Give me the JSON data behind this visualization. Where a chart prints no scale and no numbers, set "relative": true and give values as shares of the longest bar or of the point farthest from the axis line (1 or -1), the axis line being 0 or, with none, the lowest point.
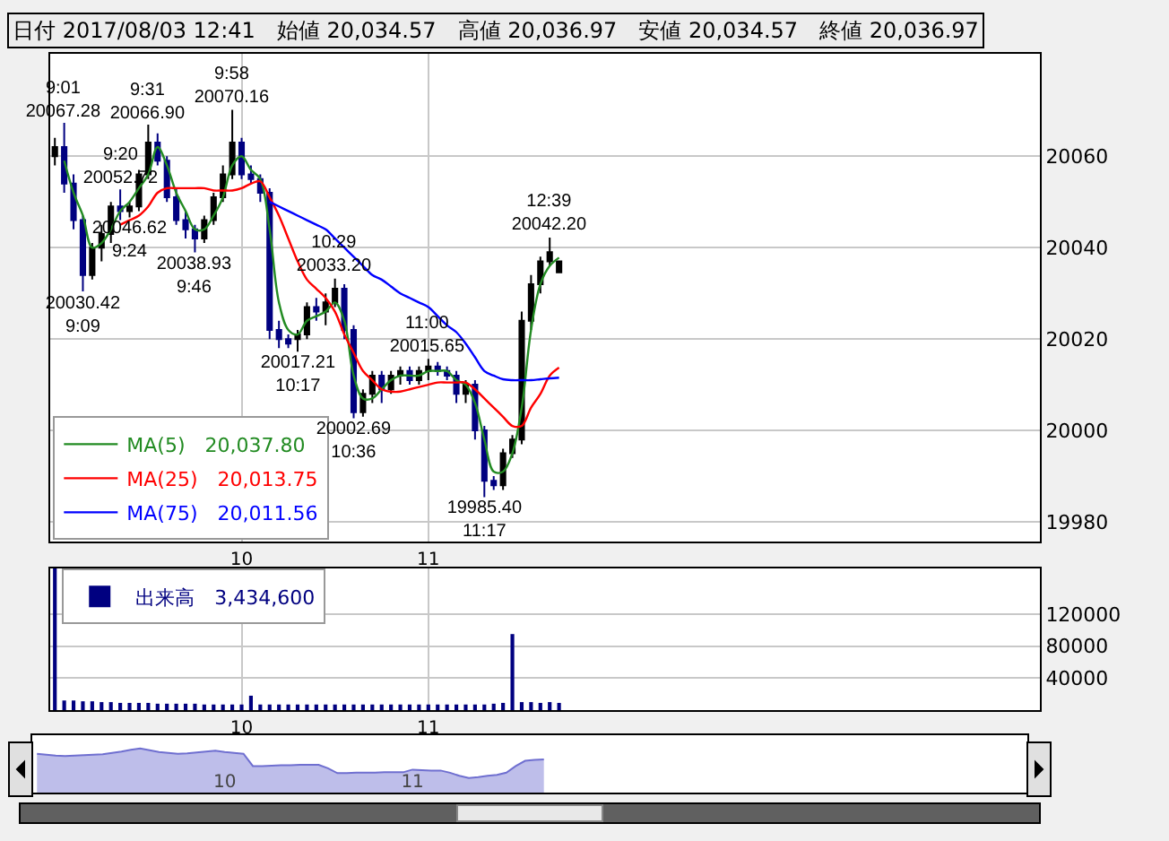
{
  "chart_data": [
    {
      "type": "candlestick",
      "title": "日付 2017/08/03 12:41　始値 20,034.57　高値 20,036.97　安値 20,034.57　終値 20,036.97",
      "categories": [
        null,
        null,
        null,
        null,
        null,
        null,
        null,
        null,
        null,
        null,
        null,
        null,
        null,
        null,
        null,
        null,
        null,
        null,
        null,
        null,
        "10",
        null,
        null,
        null,
        null,
        null,
        null,
        null,
        null,
        null,
        null,
        null,
        null,
        null,
        null,
        null,
        null,
        null,
        null,
        null,
        "11",
        null,
        null,
        null,
        null,
        null,
        null,
        null,
        null,
        null,
        null,
        null,
        null,
        null,
        null,
        null,
        null,
        null,
        null,
        null,
        null,
        null,
        null,
        null,
        null,
        null,
        null,
        null,
        null,
        null,
        null,
        null,
        null,
        null,
        null,
        null,
        null,
        null,
        null,
        null,
        null,
        null,
        null,
        null,
        null,
        null,
        null,
        null,
        null,
        null,
        null,
        null,
        null,
        null,
        null,
        null,
        null,
        null,
        null,
        null,
        null,
        null,
        null,
        null,
        null,
        null
      ],
      "ohlc": [
        [
          20060,
          20064,
          20058,
          20062
        ],
        [
          20062,
          20067.28,
          20052,
          20054
        ],
        [
          20054,
          20056,
          20044,
          20046
        ],
        [
          20046,
          20047,
          20030.42,
          20034
        ],
        [
          20034,
          20041,
          20033,
          20040
        ],
        [
          20040,
          20045,
          20037,
          20043
        ],
        [
          20043,
          20050,
          20041,
          20049
        ],
        [
          20049,
          20052.72,
          20046,
          20048
        ],
        [
          20048,
          20050,
          20046.62,
          20049
        ],
        [
          20049,
          20057,
          20048,
          20056
        ],
        [
          20056,
          20066.9,
          20055,
          20063
        ],
        [
          20063,
          20065,
          20058,
          20059
        ],
        [
          20059,
          20060,
          20050,
          20051
        ],
        [
          20051,
          20053,
          20045,
          20046
        ],
        [
          20046,
          20048,
          20042,
          20044
        ],
        [
          20044,
          20045,
          20038.93,
          20042
        ],
        [
          20042,
          20047,
          20041,
          20046
        ],
        [
          20046,
          20052,
          20045,
          20051
        ],
        [
          20051,
          20058,
          20050,
          20056
        ],
        [
          20056,
          20070.16,
          20055,
          20063
        ],
        [
          20063,
          20064,
          20055,
          20056
        ],
        [
          20056,
          20058,
          20054,
          20055
        ],
        [
          20055,
          20056,
          20050,
          20052
        ],
        [
          20052,
          20053,
          20020,
          20022
        ],
        [
          20022,
          20024,
          20018,
          20020
        ],
        [
          20020,
          20021,
          20018,
          20019
        ],
        [
          20020,
          20022,
          20017.21,
          20021
        ],
        [
          20021,
          20028,
          20020,
          20027
        ],
        [
          20027,
          20029,
          20024,
          20026
        ],
        [
          20026,
          20030,
          20023,
          20028
        ],
        [
          20028,
          20033.2,
          20027,
          20031
        ],
        [
          20031,
          20032,
          20020,
          20022
        ],
        [
          20022,
          20023,
          20002.69,
          20004
        ],
        [
          20004,
          20009,
          20003,
          20008
        ],
        [
          20008,
          20013,
          20006,
          20012
        ],
        [
          20012,
          20013,
          20006,
          20009
        ],
        [
          20009,
          20013,
          20008,
          20012
        ],
        [
          20012,
          20014,
          20010,
          20013
        ],
        [
          20013,
          20014,
          20010,
          20011
        ],
        [
          20011,
          20014,
          20010,
          20013
        ],
        [
          20013,
          20015.65,
          20011,
          20014
        ],
        [
          20014,
          20015,
          20012,
          20013
        ],
        [
          20013,
          20014,
          20011,
          20012
        ],
        [
          20012,
          20013,
          20006,
          20008
        ],
        [
          20008,
          20011,
          20006,
          20010
        ],
        [
          20010,
          20011,
          19998,
          20000
        ],
        [
          20000,
          20001,
          19985.4,
          19989
        ],
        [
          19989,
          19990,
          19987,
          19988
        ],
        [
          19988,
          19996,
          19987,
          19995
        ],
        [
          19995,
          19999,
          19994,
          19998
        ],
        [
          19998,
          20026,
          19997,
          20024
        ],
        [
          20024,
          20034,
          20022,
          20032
        ],
        [
          20032,
          20038,
          20030,
          20037
        ],
        [
          20037,
          20042.2,
          20036,
          20039
        ],
        [
          20034.57,
          20036.97,
          20034.57,
          20036.97
        ],
        null,
        null,
        null,
        null,
        null,
        null,
        null,
        null,
        null,
        null,
        null,
        null,
        null,
        null,
        null,
        null,
        null,
        null,
        null,
        null,
        null,
        null,
        null,
        null,
        null,
        null,
        null,
        null,
        null,
        null,
        null,
        null,
        null,
        null,
        null,
        null,
        null,
        null,
        null,
        null,
        null,
        null,
        null,
        null,
        null,
        null,
        null,
        null,
        null,
        null,
        null
      ],
      "colors": [
        "#000000",
        "#000080",
        "#000080",
        "#000080",
        "#000000",
        "#000000",
        "#000000",
        "#000080",
        "#000000",
        "#000000",
        "#000000",
        "#000080",
        "#000080",
        "#000080",
        "#000080",
        "#000080",
        "#000000",
        "#000000",
        "#000000",
        "#000000",
        "#000080",
        "#000080",
        "#000080",
        "#000080",
        "#000080",
        "#000080",
        "#000000",
        "#000000",
        "#000080",
        "#000000",
        "#000000",
        "#000080",
        "#000080",
        "#000000",
        "#000000",
        "#000080",
        "#000000",
        "#000000",
        "#000080",
        "#000000",
        "#000000",
        "#000080",
        "#000080",
        "#000080",
        "#000000",
        "#000080",
        "#000080",
        "#000080",
        "#000000",
        "#000000",
        "#000000",
        "#000000",
        "#000000",
        "#000000",
        "#000000",
        null,
        null,
        null,
        null,
        null,
        null,
        null,
        null,
        null,
        null,
        null,
        null,
        null,
        null,
        null,
        null,
        null,
        null,
        null,
        null,
        null,
        null,
        null,
        null,
        null,
        null,
        null,
        null,
        null,
        null,
        null,
        null,
        null,
        null,
        null,
        null,
        null,
        null,
        null,
        null,
        null,
        null,
        null,
        null,
        null,
        null,
        null,
        null,
        null,
        null,
        null
      ],
      "series": [
        {
          "type": "line",
          "name": "MA(5)　20,037.80",
          "color": "#228b22",
          "values": [
            null,
            20059,
            20052,
            20047,
            20040,
            20041,
            20044,
            20048,
            20050,
            20053,
            20056,
            20062,
            20058,
            20052,
            20048,
            20044,
            20044,
            20047,
            20051,
            20058,
            20060,
            20057,
            20055,
            20044,
            20028,
            20022,
            20021,
            20024,
            20025,
            20026,
            20028,
            20024,
            20012,
            20007,
            20007,
            20009,
            20011,
            20012,
            20012,
            20012,
            20013,
            20013,
            20013,
            20011,
            20010,
            20006,
            19998,
            19991,
            19991,
            19995,
            20005,
            20022,
            20032,
            20036,
            20037.8,
            null,
            null,
            null,
            null,
            null,
            null,
            null,
            null,
            null,
            null,
            null,
            null,
            null,
            null,
            null,
            null,
            null,
            null,
            null,
            null,
            null,
            null,
            null,
            null,
            null,
            null,
            null,
            null,
            null,
            null,
            null,
            null,
            null,
            null,
            null,
            null,
            null,
            null,
            null,
            null,
            null,
            null,
            null,
            null,
            null,
            null,
            null,
            null,
            null,
            null,
            null
          ]
        },
        {
          "type": "line",
          "name": "MA(25)　20,013.75",
          "color": "#ff0000",
          "values": [
            null,
            null,
            null,
            null,
            null,
            null,
            null,
            20045,
            20046,
            20047,
            20049,
            20052,
            20053,
            20053,
            20053,
            20053,
            20053,
            20052.5,
            20052.5,
            20052.5,
            20053,
            20054,
            20054.5,
            20051,
            20047,
            20042,
            20037,
            20033,
            20031,
            20029,
            20026,
            20021,
            20017,
            20013,
            20011,
            20009,
            20008.5,
            20008.5,
            20009,
            20009.5,
            20010,
            20010.5,
            20010.5,
            20010.5,
            20010.5,
            20009,
            20007,
            20005,
            20003,
            20001,
            20001,
            20005,
            20008,
            20012,
            20013.75,
            null,
            null,
            null,
            null,
            null,
            null,
            null,
            null,
            null,
            null,
            null,
            null,
            null,
            null,
            null,
            null,
            null,
            null,
            null,
            null,
            null,
            null,
            null,
            null,
            null,
            null,
            null,
            null,
            null,
            null,
            null,
            null,
            null,
            null,
            null,
            null,
            null,
            null,
            null,
            null,
            null,
            null,
            null,
            null,
            null,
            null,
            null,
            null,
            null,
            null,
            null
          ]
        },
        {
          "type": "line",
          "name": "MA(75)　20,011.56",
          "color": "#0000ff",
          "values": [
            null,
            null,
            null,
            null,
            null,
            null,
            null,
            null,
            null,
            null,
            null,
            null,
            null,
            null,
            null,
            null,
            null,
            null,
            null,
            null,
            null,
            null,
            null,
            20050,
            20049,
            20048,
            20047,
            20046,
            20045,
            20044,
            20042,
            20040,
            20038,
            20036,
            20034,
            20033,
            20031.5,
            20030,
            20029,
            20028,
            20027,
            20025,
            20023,
            20021.5,
            20019,
            20016,
            20013,
            20012,
            20011.2,
            20011,
            20011,
            20011,
            20011.2,
            20011.4,
            20011.56,
            null,
            null,
            null,
            null,
            null,
            null,
            null,
            null,
            null,
            null,
            null,
            null,
            null,
            null,
            null,
            null,
            null,
            null,
            null,
            null,
            null,
            null,
            null,
            null,
            null,
            null,
            null,
            null,
            null,
            null,
            null,
            null,
            null,
            null,
            null,
            null,
            null,
            null,
            null,
            null,
            null,
            null,
            null,
            null,
            null,
            null,
            null,
            null,
            null,
            null,
            null
          ]
        }
      ],
      "annotations": [
        {
          "text": "9:01\n20067.28",
          "y": 20067.28
        },
        {
          "text": "20030.42\n9:09",
          "y": 20030.42
        },
        {
          "text": "9:20\n20052.72",
          "y": 20052.72
        },
        {
          "text": "20046.62\n9:24",
          "y": 20046.62
        },
        {
          "text": "9:31\n20066.90",
          "y": 20066.9
        },
        {
          "text": "20038.93\n9:46",
          "y": 20038.93
        },
        {
          "text": "9:58\n20070.16",
          "y": 20070.16
        },
        {
          "text": "20017.21\n10:17",
          "y": 20017.21
        },
        {
          "text": "10:29\n20033.20",
          "y": 20033.2
        },
        {
          "text": "20002.69\n10:36",
          "y": 20002.69
        },
        {
          "text": "11:00\n20015.65",
          "y": 20015.65
        },
        {
          "text": "19985.40\n11:17",
          "y": 19985.4
        },
        {
          "text": "12:39\n20042.20",
          "y": 20042.2
        }
      ],
      "ylim": [
        19975.7,
        20082.4
      ],
      "yticks": [
        19980,
        20000,
        20020,
        20040,
        20060
      ],
      "grid": true,
      "legend": "bottom left"
    },
    {
      "type": "bar",
      "categories": [
        null,
        null,
        null,
        null,
        null,
        null,
        null,
        null,
        null,
        null,
        null,
        null,
        null,
        null,
        null,
        null,
        null,
        null,
        null,
        null,
        "10",
        null,
        null,
        null,
        null,
        null,
        null,
        null,
        null,
        null,
        null,
        null,
        null,
        null,
        null,
        null,
        null,
        null,
        null,
        null,
        "11",
        null,
        null,
        null,
        null,
        null,
        null,
        null,
        null,
        null,
        null,
        null,
        null,
        null,
        null,
        null,
        null,
        null,
        null,
        null,
        null,
        null,
        null,
        null,
        null,
        null,
        null,
        null,
        null,
        null,
        null,
        null,
        null,
        null,
        null,
        null,
        null,
        null,
        null,
        null,
        null,
        null,
        null,
        null,
        null,
        null,
        null,
        null,
        null,
        null,
        null,
        null,
        null,
        null,
        null,
        null,
        null,
        null,
        null,
        null,
        null,
        null,
        null,
        null,
        null,
        null
      ],
      "series": [
        {
          "name": "出来高　3,434,600",
          "color": "#000080",
          "values": [
            177000,
            12000,
            12000,
            11000,
            11000,
            10000,
            10000,
            9000,
            9000,
            9000,
            9000,
            8000,
            8000,
            8000,
            8000,
            8000,
            7000,
            7000,
            7000,
            7000,
            7000,
            18000,
            7000,
            7000,
            7000,
            7000,
            7000,
            7000,
            7000,
            7000,
            7000,
            7000,
            7000,
            7000,
            7000,
            7000,
            7000,
            7000,
            7000,
            7000,
            7000,
            7000,
            7000,
            7000,
            7000,
            7000,
            7000,
            8000,
            9000,
            95000,
            10000,
            10000,
            9000,
            10000,
            9000,
            null,
            null,
            null,
            null,
            null,
            null,
            null,
            null,
            null,
            null,
            null,
            null,
            null,
            null,
            null,
            null,
            null,
            null,
            null,
            null,
            null,
            null,
            null,
            null,
            null,
            null,
            null,
            null,
            null,
            null,
            null,
            null,
            null,
            null,
            null,
            null,
            null,
            null,
            null,
            null,
            null,
            null,
            null,
            null,
            null,
            null,
            null,
            null,
            null,
            null,
            null
          ]
        }
      ],
      "ylim": [
        0,
        177000
      ],
      "yticks": [
        40000,
        80000,
        120000
      ],
      "grid": true,
      "legend": "top left"
    },
    {
      "type": "area",
      "relative": true,
      "color": "#6f6fd0",
      "categories": [
        null,
        null,
        null,
        null,
        null,
        null,
        null,
        null,
        null,
        null,
        null,
        null,
        null,
        null,
        null,
        null,
        null,
        null,
        null,
        null,
        "10",
        null,
        null,
        null,
        null,
        null,
        null,
        null,
        null,
        null,
        null,
        null,
        null,
        null,
        null,
        null,
        null,
        null,
        null,
        null,
        "11",
        null,
        null,
        null,
        null,
        null,
        null,
        null,
        null,
        null,
        null,
        null,
        null,
        null,
        null,
        null,
        null,
        null,
        null,
        null,
        null,
        null,
        null,
        null,
        null,
        null,
        null,
        null,
        null,
        null,
        null,
        null,
        null,
        null,
        null,
        null,
        null,
        null,
        null,
        null,
        null,
        null,
        null,
        null,
        null,
        null,
        null,
        null,
        null,
        null,
        null,
        null,
        null,
        null,
        null,
        null,
        null,
        null,
        null,
        null,
        null,
        null,
        null,
        null,
        null,
        null
      ],
      "values": [
        0.88,
        0.86,
        0.84,
        0.83,
        0.84,
        0.85,
        0.86,
        0.87,
        0.9,
        0.93,
        0.97,
        1.0,
        0.96,
        0.92,
        0.9,
        0.88,
        0.89,
        0.91,
        0.93,
        0.95,
        0.92,
        0.9,
        0.88,
        0.6,
        0.6,
        0.61,
        0.62,
        0.62,
        0.63,
        0.63,
        0.63,
        0.55,
        0.44,
        0.44,
        0.45,
        0.45,
        0.45,
        0.46,
        0.46,
        0.46,
        0.52,
        0.51,
        0.5,
        0.5,
        0.45,
        0.38,
        0.33,
        0.35,
        0.38,
        0.4,
        0.45,
        0.6,
        0.72,
        0.74,
        0.75,
        null,
        null,
        null,
        null,
        null,
        null,
        null,
        null,
        null,
        null,
        null,
        null,
        null,
        null,
        null,
        null,
        null,
        null,
        null,
        null,
        null,
        null,
        null,
        null,
        null,
        null,
        null,
        null,
        null,
        null,
        null,
        null,
        null,
        null,
        null,
        null,
        null,
        null,
        null,
        null,
        null,
        null,
        null,
        null,
        null,
        null,
        null,
        null,
        null,
        null,
        null
      ]
    }
  ]
}
